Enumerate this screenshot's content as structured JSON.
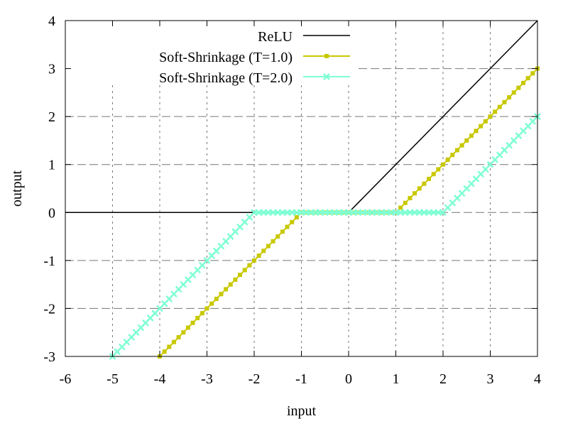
{
  "chart_data": {
    "type": "line",
    "title": "",
    "xlabel": "input",
    "ylabel": "output",
    "xlim": [
      -6,
      4
    ],
    "ylim": [
      -3,
      4
    ],
    "xticks": [
      "-6",
      "-5",
      "-4",
      "-3",
      "-2",
      "-1",
      "0",
      "1",
      "2",
      "3",
      "4"
    ],
    "yticks": [
      "-3",
      "-2",
      "-1",
      "0",
      "1",
      "2",
      "3",
      "4"
    ],
    "grid": true,
    "legend_position": "top-right",
    "series": [
      {
        "name": "ReLU",
        "color": "#000000",
        "marker": "none",
        "x": [
          -6,
          0,
          4
        ],
        "y": [
          0,
          0,
          4
        ]
      },
      {
        "name": "Soft-Shrinkage (T=1.0)",
        "color": "#c8c800",
        "marker": "filled-square",
        "x": [
          -4,
          -1,
          1,
          4
        ],
        "y": [
          -3,
          0,
          0,
          3
        ]
      },
      {
        "name": "Soft-Shrinkage (T=2.0)",
        "color": "#7fffd4",
        "marker": "cross",
        "x": [
          -5,
          -2,
          2,
          4
        ],
        "y": [
          -3,
          0,
          0,
          2
        ]
      }
    ]
  }
}
